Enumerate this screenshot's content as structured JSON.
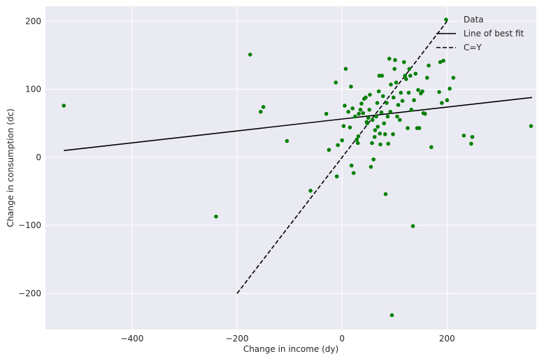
{
  "chart_data": {
    "type": "scatter",
    "xlabel": "Change in income (dy)",
    "ylabel": "Change in consumption (dc)",
    "xlim": [
      -565,
      370
    ],
    "ylim": [
      -253,
      222
    ],
    "xticks": [
      -400,
      -200,
      0,
      200,
      400
    ],
    "yticks": [
      -200,
      -100,
      0,
      100,
      200
    ],
    "xtick_labels": [
      "−400",
      "−200",
      "0",
      "200",
      "400"
    ],
    "ytick_labels": [
      "−200",
      "−100",
      "0",
      "100",
      "200"
    ],
    "grid": true,
    "legend_position": "top-right",
    "colors": {
      "background": "#eaeaf2",
      "grid": "#ffffff",
      "points": "#008000",
      "lines": "#000000"
    },
    "series": [
      {
        "name": "Data",
        "kind": "points",
        "points": [
          [
            -530,
            76
          ],
          [
            -175,
            151
          ],
          [
            -155,
            67
          ],
          [
            -150,
            74
          ],
          [
            -105,
            24
          ],
          [
            -240,
            -87
          ],
          [
            -60,
            -49
          ],
          [
            -30,
            64
          ],
          [
            -25,
            11
          ],
          [
            -12,
            110
          ],
          [
            -10,
            -28
          ],
          [
            -8,
            18
          ],
          [
            0,
            25
          ],
          [
            3,
            46
          ],
          [
            5,
            76
          ],
          [
            7,
            130
          ],
          [
            12,
            67
          ],
          [
            15,
            44
          ],
          [
            17,
            104
          ],
          [
            18,
            -12
          ],
          [
            20,
            72
          ],
          [
            22,
            -23
          ],
          [
            25,
            60
          ],
          [
            28,
            26
          ],
          [
            30,
            21
          ],
          [
            31,
            31
          ],
          [
            32,
            64
          ],
          [
            35,
            70
          ],
          [
            37,
            79
          ],
          [
            40,
            65
          ],
          [
            42,
            86
          ],
          [
            45,
            88
          ],
          [
            47,
            52
          ],
          [
            48,
            50
          ],
          [
            50,
            58
          ],
          [
            52,
            70
          ],
          [
            53,
            92
          ],
          [
            55,
            -14
          ],
          [
            57,
            21
          ],
          [
            58,
            55
          ],
          [
            60,
            -3
          ],
          [
            62,
            30
          ],
          [
            63,
            40
          ],
          [
            65,
            60
          ],
          [
            67,
            80
          ],
          [
            68,
            45
          ],
          [
            70,
            97
          ],
          [
            71,
            120
          ],
          [
            72,
            35
          ],
          [
            73,
            19
          ],
          [
            75,
            66
          ],
          [
            76,
            120
          ],
          [
            78,
            90
          ],
          [
            80,
            50
          ],
          [
            82,
            34
          ],
          [
            83,
            -54
          ],
          [
            85,
            80
          ],
          [
            87,
            60
          ],
          [
            88,
            20
          ],
          [
            90,
            145
          ],
          [
            92,
            67
          ],
          [
            93,
            107
          ],
          [
            95,
            -232
          ],
          [
            97,
            34
          ],
          [
            98,
            88
          ],
          [
            100,
            130
          ],
          [
            101,
            143
          ],
          [
            103,
            110
          ],
          [
            105,
            60
          ],
          [
            107,
            77
          ],
          [
            110,
            55
          ],
          [
            112,
            95
          ],
          [
            115,
            83
          ],
          [
            118,
            140
          ],
          [
            120,
            120
          ],
          [
            122,
            115
          ],
          [
            125,
            43
          ],
          [
            127,
            95
          ],
          [
            128,
            130
          ],
          [
            130,
            120
          ],
          [
            132,
            70
          ],
          [
            135,
            -101
          ],
          [
            137,
            84
          ],
          [
            140,
            123
          ],
          [
            143,
            43
          ],
          [
            145,
            99
          ],
          [
            147,
            43
          ],
          [
            150,
            94
          ],
          [
            153,
            97
          ],
          [
            155,
            65
          ],
          [
            158,
            64
          ],
          [
            162,
            117
          ],
          [
            165,
            135
          ],
          [
            170,
            15
          ],
          [
            185,
            96
          ],
          [
            187,
            140
          ],
          [
            190,
            80
          ],
          [
            193,
            142
          ],
          [
            200,
            84
          ],
          [
            205,
            101
          ],
          [
            212,
            117
          ],
          [
            232,
            32
          ],
          [
            246,
            20
          ],
          [
            248,
            30
          ],
          [
            360,
            46
          ]
        ]
      },
      {
        "name": "Line of best fit",
        "kind": "line",
        "style": "solid",
        "points": [
          [
            -530,
            10
          ],
          [
            362,
            88
          ]
        ]
      },
      {
        "name": "C=Y",
        "kind": "line",
        "style": "dashed",
        "points": [
          [
            -200,
            -200
          ],
          [
            200,
            200
          ]
        ]
      }
    ]
  }
}
